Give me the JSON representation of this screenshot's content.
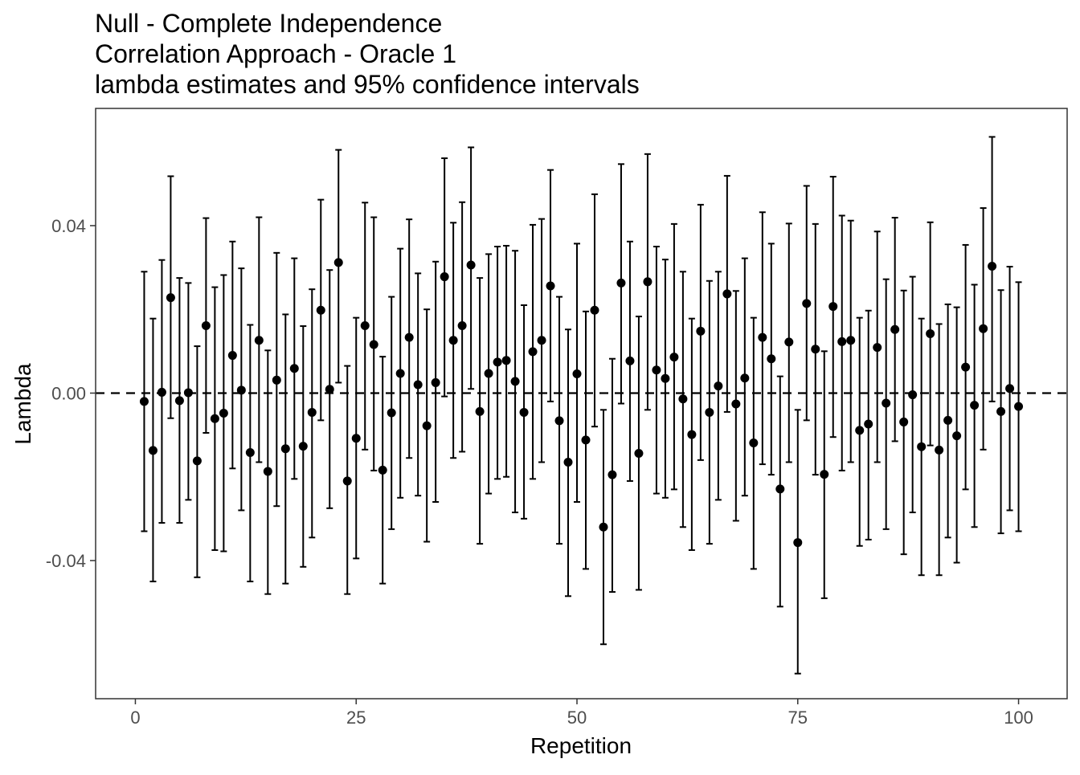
{
  "chart_data": {
    "type": "scatter",
    "title_lines": [
      "Null - Complete Independence",
      "Correlation Approach - Oracle 1",
      "lambda estimates and 95% confidence intervals"
    ],
    "xlabel": "Repetition",
    "ylabel": "Lambda",
    "xlim": [
      -4.5,
      105.5
    ],
    "ylim": [
      -0.073,
      0.068
    ],
    "x_ticks": [
      0,
      25,
      50,
      75,
      100
    ],
    "x_tick_labels": [
      "0",
      "25",
      "50",
      "75",
      "100"
    ],
    "y_ticks": [
      -0.04,
      0,
      0.04
    ],
    "y_tick_labels": [
      "-0.04",
      "0.00",
      "0.04"
    ],
    "reference_line": {
      "y": 0,
      "style": "dashed"
    },
    "grid": false,
    "legend": "none",
    "point_color": "#000000",
    "series": [
      {
        "x": [
          1,
          2,
          3,
          4,
          5,
          6,
          7,
          8,
          9,
          10,
          11,
          12,
          13,
          14,
          15,
          16,
          17,
          18,
          19,
          20,
          21,
          22,
          23,
          24,
          25,
          26,
          27,
          28,
          29,
          30,
          31,
          32,
          33,
          34,
          35,
          36,
          37,
          38,
          39,
          40,
          41,
          42,
          43,
          44,
          45,
          46,
          47,
          48,
          49,
          50,
          51,
          52,
          53,
          54,
          55,
          56,
          57,
          58,
          59,
          60,
          61,
          62,
          63,
          64,
          65,
          66,
          67,
          68,
          69,
          70,
          71,
          72,
          73,
          74,
          75,
          76,
          77,
          78,
          79,
          80,
          81,
          82,
          83,
          84,
          85,
          86,
          87,
          88,
          89,
          90,
          91,
          92,
          93,
          94,
          95,
          96,
          97,
          98,
          99,
          100
        ],
        "y": [
          -0.002,
          -0.0137,
          0.0002,
          0.0228,
          -0.0018,
          0.0001,
          -0.0162,
          0.0161,
          -0.0061,
          -0.0048,
          0.009,
          0.0007,
          -0.0142,
          0.0126,
          -0.0187,
          0.0031,
          -0.0133,
          0.0059,
          -0.0127,
          -0.0046,
          0.0198,
          0.0009,
          0.0312,
          -0.021,
          -0.0108,
          0.0161,
          0.0116,
          -0.0184,
          -0.0047,
          0.0047,
          0.0133,
          0.002,
          -0.0078,
          0.0025,
          0.0278,
          0.0126,
          0.0161,
          0.0306,
          -0.0044,
          0.0047,
          0.0074,
          0.0078,
          0.0028,
          -0.0046,
          0.0099,
          0.0126,
          0.0256,
          -0.0066,
          -0.0165,
          0.0046,
          -0.0112,
          0.0198,
          -0.032,
          -0.0195,
          0.0263,
          0.0077,
          -0.0144,
          0.0266,
          0.0055,
          0.0035,
          0.0086,
          -0.0014,
          -0.0099,
          0.0148,
          -0.0046,
          0.0017,
          0.0237,
          -0.0026,
          0.0036,
          -0.0119,
          0.0133,
          0.0082,
          -0.0229,
          0.0122,
          -0.0357,
          0.0214,
          0.0105,
          -0.0194,
          0.0207,
          0.0123,
          0.0126,
          -0.0089,
          -0.0074,
          0.0109,
          -0.0024,
          0.0152,
          -0.0069,
          -0.0004,
          -0.0128,
          0.0142,
          -0.0136,
          -0.0065,
          -0.0102,
          0.0062,
          -0.0029,
          0.0154,
          0.0303,
          -0.0044,
          0.0011,
          -0.0032
        ],
        "lower": [
          -0.033,
          -0.045,
          -0.031,
          -0.006,
          -0.031,
          -0.0255,
          -0.044,
          -0.0095,
          -0.0375,
          -0.0378,
          -0.018,
          -0.028,
          -0.045,
          -0.0165,
          -0.048,
          -0.027,
          -0.0455,
          -0.0205,
          -0.0415,
          -0.0345,
          -0.0065,
          -0.0275,
          0.0025,
          -0.048,
          -0.0395,
          -0.0135,
          -0.0185,
          -0.0455,
          -0.0325,
          -0.025,
          -0.0155,
          -0.0245,
          -0.0355,
          -0.026,
          -0.0008,
          -0.0155,
          -0.014,
          0.001,
          -0.036,
          -0.024,
          -0.0205,
          -0.02,
          -0.0285,
          -0.03,
          -0.0205,
          -0.0165,
          -0.002,
          -0.036,
          -0.0485,
          -0.026,
          -0.042,
          -0.008,
          -0.06,
          -0.0475,
          -0.0025,
          -0.021,
          -0.047,
          -0.004,
          -0.024,
          -0.025,
          -0.023,
          -0.032,
          -0.0375,
          -0.016,
          -0.036,
          -0.0255,
          -0.0045,
          -0.0305,
          -0.0245,
          -0.042,
          -0.017,
          -0.0195,
          -0.051,
          -0.0165,
          -0.067,
          -0.0065,
          -0.0195,
          -0.049,
          -0.0105,
          -0.0185,
          -0.0165,
          -0.0365,
          -0.035,
          -0.0165,
          -0.0325,
          -0.0115,
          -0.0385,
          -0.0285,
          -0.0435,
          -0.0125,
          -0.0435,
          -0.0345,
          -0.0405,
          -0.023,
          -0.032,
          -0.0135,
          -0.002,
          -0.0335,
          -0.028,
          -0.033
        ],
        "upper": [
          0.029,
          0.0178,
          0.0318,
          0.0518,
          0.0275,
          0.0263,
          0.0112,
          0.0418,
          0.0253,
          0.0282,
          0.0362,
          0.0298,
          0.0163,
          0.042,
          0.0102,
          0.0335,
          0.0188,
          0.0322,
          0.016,
          0.0248,
          0.0462,
          0.0294,
          0.0581,
          0.0065,
          0.018,
          0.0455,
          0.042,
          0.0087,
          0.023,
          0.0345,
          0.0415,
          0.0286,
          0.02,
          0.0314,
          0.0561,
          0.0407,
          0.0456,
          0.0587,
          0.0275,
          0.0332,
          0.035,
          0.0352,
          0.034,
          0.021,
          0.0402,
          0.0416,
          0.0533,
          0.023,
          0.0152,
          0.0357,
          0.0195,
          0.0475,
          -0.004,
          0.0082,
          0.0547,
          0.0362,
          0.0183,
          0.0571,
          0.035,
          0.0319,
          0.0404,
          0.029,
          0.0178,
          0.045,
          0.0268,
          0.029,
          0.0519,
          0.0244,
          0.0322,
          0.018,
          0.0432,
          0.0357,
          0.004,
          0.0405,
          -0.004,
          0.0495,
          0.0404,
          0.01,
          0.0517,
          0.0424,
          0.0412,
          0.018,
          0.0197,
          0.0386,
          0.0272,
          0.0419,
          0.0245,
          0.0278,
          0.0178,
          0.0408,
          0.0165,
          0.0212,
          0.0205,
          0.0354,
          0.0259,
          0.0442,
          0.0612,
          0.0246,
          0.0302,
          0.0265
        ]
      }
    ]
  }
}
